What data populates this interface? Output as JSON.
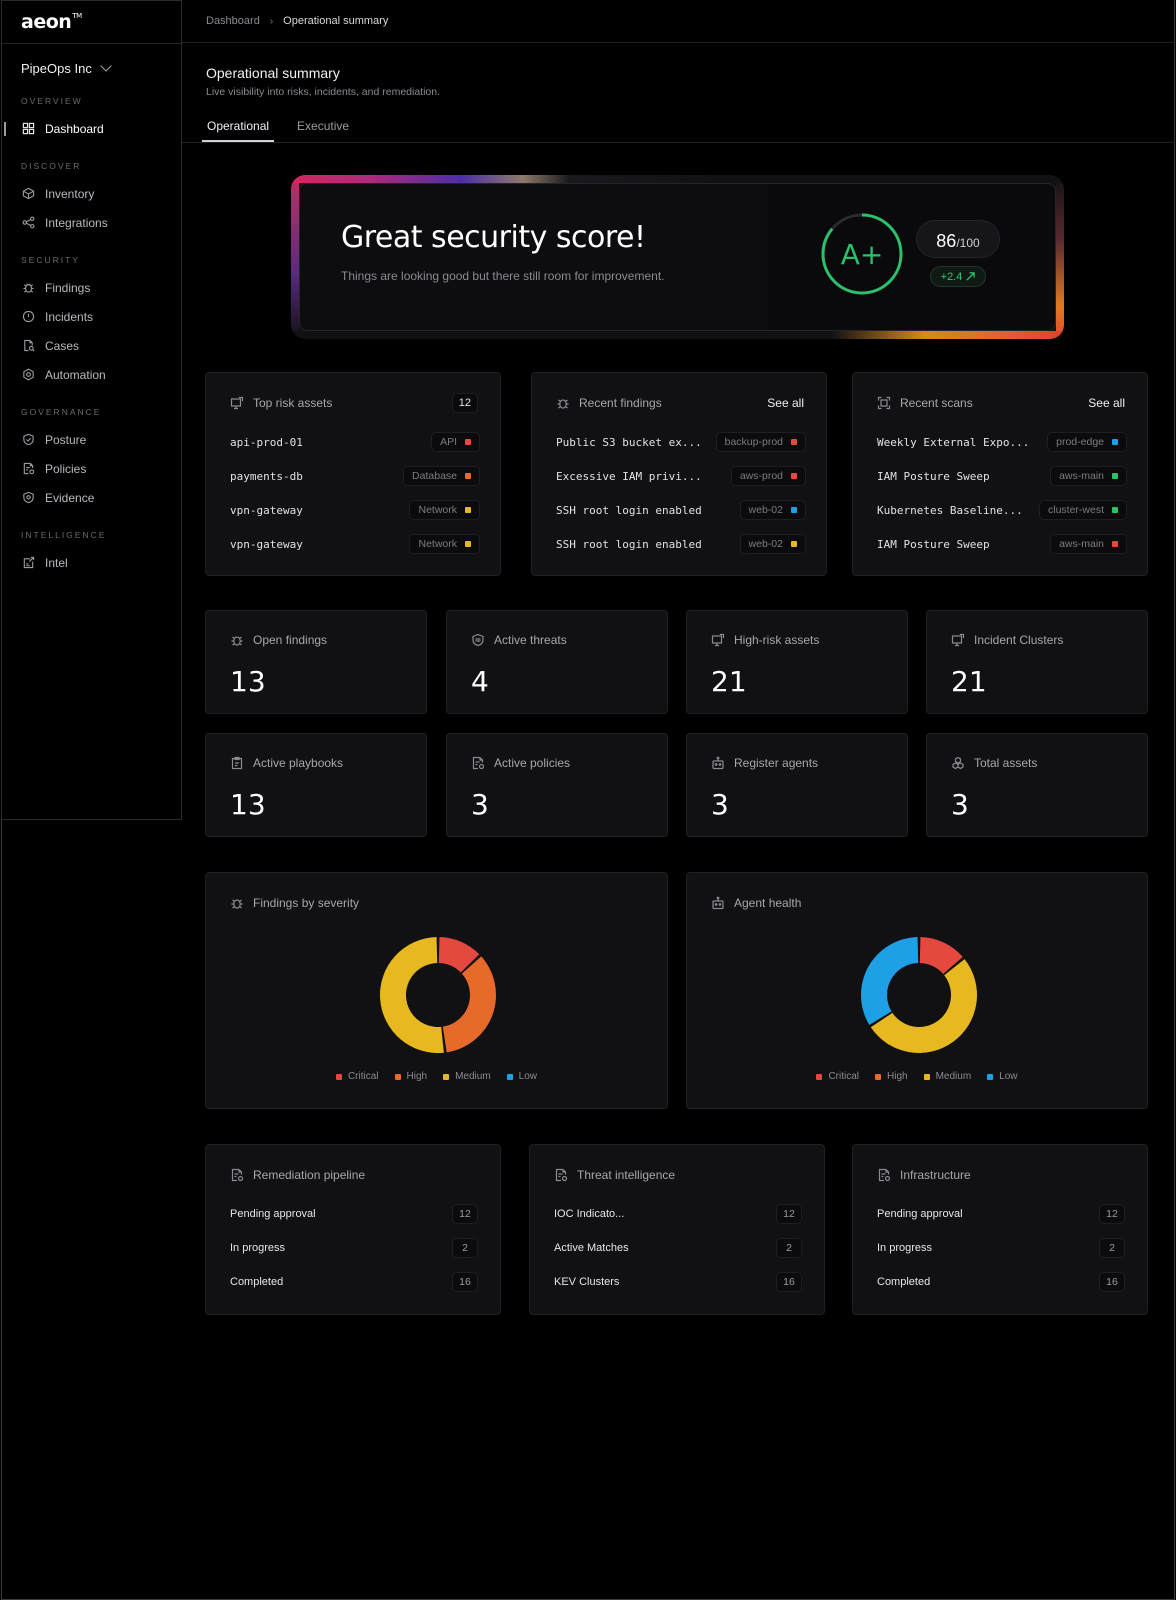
{
  "brand": {
    "logo": "aeon",
    "trademark": "TM",
    "org": "PipeOps Inc"
  },
  "sidebar": {
    "sections": [
      {
        "heading": "OVERVIEW",
        "items": [
          {
            "label": "Dashboard",
            "icon": "dashboard-grid-icon",
            "active": true
          }
        ]
      },
      {
        "heading": "DISCOVER",
        "items": [
          {
            "label": "Inventory",
            "icon": "cube-icon"
          },
          {
            "label": "Integrations",
            "icon": "share-nodes-icon"
          }
        ]
      },
      {
        "heading": "SECURITY",
        "items": [
          {
            "label": "Findings",
            "icon": "bug-icon"
          },
          {
            "label": "Incidents",
            "icon": "alert-circle-icon"
          },
          {
            "label": "Cases",
            "icon": "file-search-icon"
          },
          {
            "label": "Automation",
            "icon": "gear-hex-icon"
          }
        ]
      },
      {
        "heading": "GOVERNANCE",
        "items": [
          {
            "label": "Posture",
            "icon": "shield-check-icon"
          },
          {
            "label": "Policies",
            "icon": "policy-doc-icon"
          },
          {
            "label": "Evidence",
            "icon": "shield-badge-icon"
          }
        ]
      },
      {
        "heading": "INTELLIGENCE",
        "items": [
          {
            "label": "Intel",
            "icon": "intel-doc-icon"
          }
        ]
      }
    ]
  },
  "breadcrumb": {
    "root": "Dashboard",
    "current": "Operational summary"
  },
  "header": {
    "title": "Operational summary",
    "subtitle": "Live visibility into risks, incidents, and remediation.",
    "tabs": [
      {
        "label": "Operational",
        "active": true
      },
      {
        "label": "Executive"
      }
    ]
  },
  "score": {
    "title": "Great security score!",
    "subtitle": "Things are looking good but there still room for improvement.",
    "grade": "A+",
    "value": "86",
    "max": "/100",
    "progress_fraction": 0.86,
    "delta": "+2.4",
    "grade_color": "#2bc06a"
  },
  "top_risk": {
    "title": "Top risk assets",
    "count": "12",
    "rows": [
      {
        "name": "api-prod-01",
        "tag": "API",
        "color": "#e5483f"
      },
      {
        "name": "payments-db",
        "tag": "Database",
        "color": "#e86a2a"
      },
      {
        "name": "vpn-gateway",
        "tag": "Network",
        "color": "#e8b820"
      },
      {
        "name": "vpn-gateway",
        "tag": "Network",
        "color": "#e8b820"
      }
    ]
  },
  "recent_findings": {
    "title": "Recent findings",
    "action": "See all",
    "rows": [
      {
        "name": "Public S3 bucket ex...",
        "tag": "backup-prod",
        "color": "#e5483f"
      },
      {
        "name": "Excessive IAM privi...",
        "tag": "aws-prod",
        "color": "#e5483f"
      },
      {
        "name": "SSH root login enabled",
        "tag": "web-02",
        "color": "#1ea0e6"
      },
      {
        "name": "SSH root login enabled",
        "tag": "web-02",
        "color": "#e8b820"
      }
    ]
  },
  "recent_scans": {
    "title": "Recent scans",
    "action": "See all",
    "rows": [
      {
        "name": "Weekly External Expo...",
        "tag": "prod-edge",
        "color": "#1ea0e6"
      },
      {
        "name": "IAM Posture Sweep",
        "tag": "aws-main",
        "color": "#2bc06a"
      },
      {
        "name": "Kubernetes Baseline...",
        "tag": "cluster-west",
        "color": "#2bc06a"
      },
      {
        "name": "IAM Posture Sweep",
        "tag": "aws-main",
        "color": "#e5483f"
      }
    ]
  },
  "stats": [
    {
      "label": "Open findings",
      "value": "13",
      "icon": "bug-icon"
    },
    {
      "label": "Active threats",
      "value": "4",
      "icon": "shield-icon"
    },
    {
      "label": "High-risk assets",
      "value": "21",
      "icon": "monitor-alert-icon"
    },
    {
      "label": "Incident Clusters",
      "value": "21",
      "icon": "monitor-alert-icon"
    },
    {
      "label": "Active playbooks",
      "value": "13",
      "icon": "clipboard-icon"
    },
    {
      "label": "Active policies",
      "value": "3",
      "icon": "policy-doc-icon"
    },
    {
      "label": "Register agents",
      "value": "3",
      "icon": "robot-icon"
    },
    {
      "label": "Total assets",
      "value": "3",
      "icon": "boxes-icon"
    }
  ],
  "charts": {
    "legend": [
      {
        "label": "Critical",
        "color": "#e5483f"
      },
      {
        "label": "High",
        "color": "#e86a2a"
      },
      {
        "label": "Medium",
        "color": "#e8b820"
      },
      {
        "label": "Low",
        "color": "#1ea0e6"
      }
    ]
  },
  "chart_data": [
    {
      "type": "pie",
      "title": "Findings by severity",
      "categories": [
        "Critical",
        "High",
        "Medium",
        "Low"
      ],
      "values": [
        13,
        35,
        52,
        0
      ]
    },
    {
      "type": "pie",
      "title": "Agent health",
      "categories": [
        "Critical",
        "High",
        "Medium",
        "Low"
      ],
      "values": [
        14,
        0,
        52,
        34
      ]
    }
  ],
  "remediation": {
    "title": "Remediation pipeline",
    "rows": [
      {
        "label": "Pending approval",
        "value": "12"
      },
      {
        "label": "In progress",
        "value": "2"
      },
      {
        "label": "Completed",
        "value": "16"
      }
    ]
  },
  "threat_intel": {
    "title": "Threat intelligence",
    "rows": [
      {
        "label": "IOC Indicato...",
        "value": "12"
      },
      {
        "label": "Active Matches",
        "value": "2"
      },
      {
        "label": "KEV Clusters",
        "value": "16"
      }
    ]
  },
  "infrastructure": {
    "title": "Infrastructure",
    "rows": [
      {
        "label": "Pending approval",
        "value": "12"
      },
      {
        "label": "In progress",
        "value": "2"
      },
      {
        "label": "Completed",
        "value": "16"
      }
    ]
  }
}
